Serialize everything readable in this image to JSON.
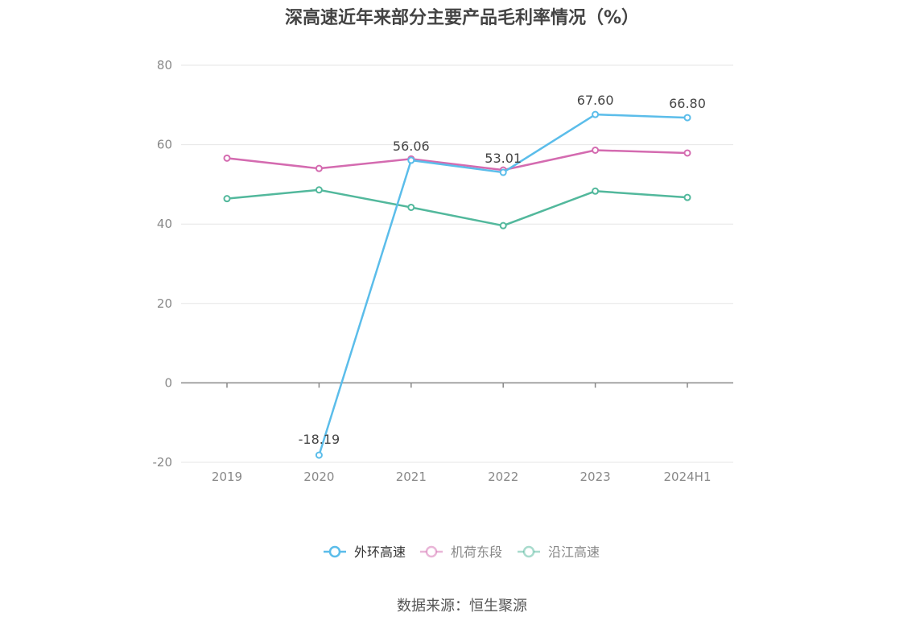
{
  "chart_data": {
    "type": "line",
    "title": "深高速近年来部分主要产品毛利率情况（%）",
    "categories": [
      "2019",
      "2020",
      "2021",
      "2022",
      "2023",
      "2024H1"
    ],
    "ylim": [
      -20,
      80
    ],
    "yticks": [
      80,
      60,
      40,
      20,
      0,
      -20
    ],
    "grid": true,
    "legend_position": "bottom",
    "series": [
      {
        "name": "外环高速",
        "color": "#5bbdea",
        "values": [
          null,
          -18.19,
          56.06,
          53.01,
          67.6,
          66.8
        ],
        "labels": [
          "",
          "-18.19",
          "56.06",
          "53.01",
          "67.60",
          "66.80"
        ]
      },
      {
        "name": "机荷东段",
        "color": "#d46bb0",
        "values": [
          56.6,
          54.0,
          56.4,
          53.6,
          58.6,
          57.9
        ]
      },
      {
        "name": "沿江高速",
        "color": "#52b89c",
        "values": [
          46.4,
          48.6,
          44.2,
          39.6,
          48.3,
          46.7
        ]
      }
    ]
  },
  "source": "数据来源：恒生聚源"
}
